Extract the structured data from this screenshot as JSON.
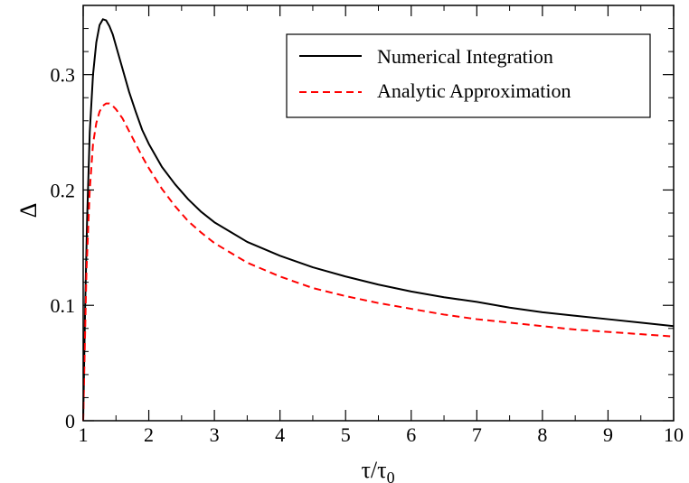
{
  "chart_data": {
    "type": "line",
    "title": "",
    "xlabel": "τ/τ",
    "xlabel_subscript": "0",
    "ylabel": "Δ",
    "xlim": [
      1,
      10
    ],
    "ylim": [
      0,
      0.36
    ],
    "x_ticks": [
      1,
      2,
      3,
      4,
      5,
      6,
      7,
      8,
      9,
      10
    ],
    "x_tick_labels": [
      "1",
      "2",
      "3",
      "4",
      "5",
      "6",
      "7",
      "8",
      "9",
      "10"
    ],
    "y_ticks": [
      0,
      0.1,
      0.2,
      0.3
    ],
    "y_tick_labels": [
      "0",
      "0.1",
      "0.2",
      "0.3"
    ],
    "grid": false,
    "legend_position": "top-right",
    "series": [
      {
        "name": "Numerical Integration",
        "color": "#000000",
        "style": "solid",
        "x": [
          1.0,
          1.03,
          1.06,
          1.1,
          1.15,
          1.2,
          1.25,
          1.3,
          1.35,
          1.4,
          1.45,
          1.5,
          1.6,
          1.7,
          1.8,
          1.9,
          2.0,
          2.2,
          2.4,
          2.6,
          2.8,
          3.0,
          3.5,
          4.0,
          4.5,
          5.0,
          5.5,
          6.0,
          6.5,
          7.0,
          7.5,
          8.0,
          8.5,
          9.0,
          9.5,
          10.0
        ],
        "y": [
          0.0,
          0.1,
          0.175,
          0.25,
          0.3,
          0.328,
          0.343,
          0.348,
          0.347,
          0.342,
          0.335,
          0.325,
          0.305,
          0.285,
          0.268,
          0.252,
          0.24,
          0.22,
          0.205,
          0.192,
          0.181,
          0.172,
          0.155,
          0.143,
          0.133,
          0.125,
          0.118,
          0.112,
          0.107,
          0.103,
          0.098,
          0.094,
          0.091,
          0.088,
          0.085,
          0.082
        ]
      },
      {
        "name": "Analytic Approximation",
        "color": "#ff0000",
        "style": "dashed",
        "x": [
          1.0,
          1.05,
          1.1,
          1.15,
          1.2,
          1.25,
          1.3,
          1.35,
          1.4,
          1.45,
          1.5,
          1.6,
          1.7,
          1.8,
          1.9,
          2.0,
          2.2,
          2.4,
          2.6,
          2.8,
          3.0,
          3.5,
          4.0,
          4.5,
          5.0,
          5.5,
          6.0,
          6.5,
          7.0,
          7.5,
          8.0,
          8.5,
          9.0,
          9.5,
          10.0
        ],
        "y": [
          0.0,
          0.13,
          0.2,
          0.24,
          0.258,
          0.268,
          0.273,
          0.275,
          0.275,
          0.273,
          0.27,
          0.262,
          0.251,
          0.24,
          0.229,
          0.219,
          0.201,
          0.186,
          0.173,
          0.163,
          0.154,
          0.137,
          0.125,
          0.115,
          0.108,
          0.102,
          0.097,
          0.092,
          0.088,
          0.085,
          0.082,
          0.079,
          0.077,
          0.075,
          0.073
        ]
      }
    ]
  }
}
